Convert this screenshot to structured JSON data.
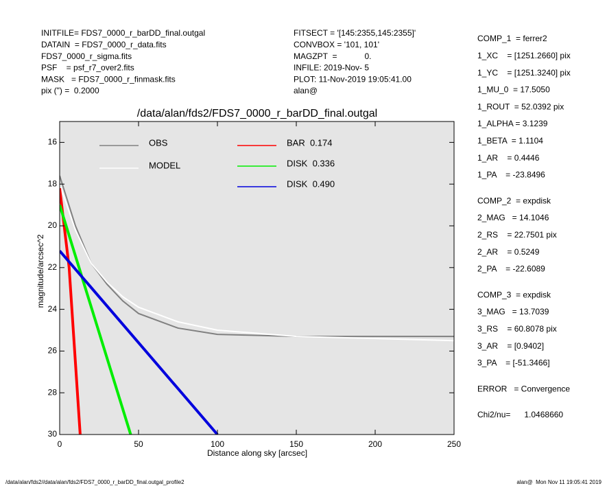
{
  "header_left": [
    "INITFILE= FDS7_0000_r_barDD_final.outgal",
    "DATAIN  = FDS7_0000_r_data.fits",
    "FDS7_0000_r_sigma.fits",
    "PSF    = psf_r7_over2.fits",
    "MASK   = FDS7_0000_r_finmask.fits",
    "pix (\") =  0.2000"
  ],
  "header_middle": [
    "FITSECT = '[145:2355,145:2355]'",
    "CONVBOX = '101, 101'",
    "MAGZPT  =            0.",
    "INFILE: 2019-Nov- 5",
    "PLOT: 11-Nov-2019 19:05:41.00",
    "alan@"
  ],
  "fit_parameters": [
    [
      "COMP_1  = ferrer2",
      "1_XC    = [1251.2660] pix",
      "1_YC    = [1251.3240] pix",
      "1_MU_0  = 17.5050",
      "1_ROUT  = 52.0392 pix",
      "1_ALPHA = 3.1239",
      "1_BETA  = 1.1104",
      "1_AR    = 0.4446",
      "1_PA    = -23.8496"
    ],
    [
      "COMP_2  = expdisk",
      "2_MAG   = 14.1046",
      "2_RS    = 22.7501 pix",
      "2_AR    = 0.5249",
      "2_PA    = -22.6089"
    ],
    [
      "COMP_3  = expdisk",
      "3_MAG   = 13.7039",
      "3_RS    = 60.8078 pix",
      "3_AR    = [0.9402]",
      "3_PA    = [-51.3466]"
    ],
    [
      "ERROR   = Convergence"
    ],
    [
      "Chi2/nu=      1.0468660"
    ]
  ],
  "footer_left": "/data/alan/fds2//data/alan/fds2/FDS7_0000_r_barDD_final.outgal_profile2",
  "footer_right": "alan@  Mon Nov 11 19:05:41 2019",
  "chart_data": {
    "type": "line",
    "title": "/data/alan/fds2/FDS7_0000_r_barDD_final.outgal",
    "x_label": "Distance along sky [arcsec]",
    "y_label": "magnitude/arcsec^2",
    "xlim": [
      0,
      250
    ],
    "ylim": [
      30,
      15
    ],
    "xticks": [
      0,
      50,
      100,
      150,
      200,
      250
    ],
    "yticks": [
      16,
      18,
      20,
      22,
      24,
      26,
      28,
      30
    ],
    "background": "#e5e5e5",
    "series": [
      {
        "name": "OBS",
        "color": "#808080",
        "x": [
          0,
          10,
          20,
          30,
          40,
          50,
          75,
          100,
          150,
          200,
          250
        ],
        "values": [
          17.6,
          20.0,
          21.8,
          22.8,
          23.6,
          24.2,
          24.9,
          25.2,
          25.3,
          25.3,
          25.3
        ]
      },
      {
        "name": "MODEL",
        "color": "#ffffff",
        "x": [
          0,
          10,
          20,
          30,
          40,
          50,
          75,
          100,
          150,
          200,
          250
        ],
        "values": [
          18.0,
          20.2,
          21.8,
          22.7,
          23.4,
          23.9,
          24.6,
          25.0,
          25.3,
          25.4,
          25.5
        ]
      },
      {
        "name": "BAR  0.174",
        "color": "#ff0000",
        "x": [
          0,
          6,
          13
        ],
        "values": [
          18.2,
          22,
          30
        ]
      },
      {
        "name": "DISK  0.336",
        "color": "#00ee00",
        "x": [
          0,
          45
        ],
        "values": [
          19,
          30
        ]
      },
      {
        "name": "DISK  0.490",
        "color": "#0000dd",
        "x": [
          0,
          100
        ],
        "values": [
          21.2,
          30
        ]
      }
    ]
  }
}
